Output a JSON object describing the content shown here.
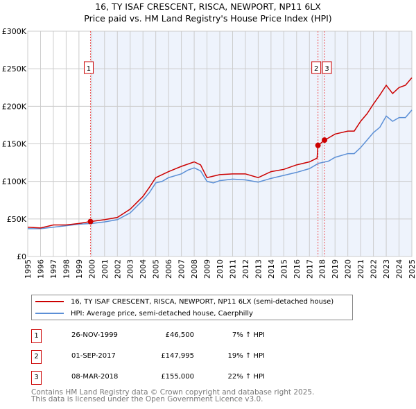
{
  "chart_data": {
    "type": "line",
    "title": "16, TY ISAF CRESCENT, RISCA, NEWPORT, NP11 6LX",
    "subtitle": "Price paid vs. HM Land Registry's House Price Index (HPI)",
    "xlim": [
      1995,
      2025
    ],
    "ylim": [
      0,
      300000
    ],
    "x_ticks": [
      "1995",
      "1996",
      "1997",
      "1998",
      "1999",
      "2000",
      "2001",
      "2002",
      "2003",
      "2004",
      "2005",
      "2006",
      "2007",
      "2008",
      "2009",
      "2010",
      "2011",
      "2012",
      "2013",
      "2014",
      "2015",
      "2016",
      "2017",
      "2018",
      "2019",
      "2020",
      "2021",
      "2022",
      "2023",
      "2024",
      "2025"
    ],
    "y_ticks": [
      {
        "v": 0,
        "label": "£0"
      },
      {
        "v": 50000,
        "label": "£50K"
      },
      {
        "v": 100000,
        "label": "£100K"
      },
      {
        "v": 150000,
        "label": "£150K"
      },
      {
        "v": 200000,
        "label": "£200K"
      },
      {
        "v": 250000,
        "label": "£250K"
      },
      {
        "v": 300000,
        "label": "£300K"
      }
    ],
    "grid": true,
    "series": [
      {
        "name": "16, TY ISAF CRESCENT, RISCA, NEWPORT, NP11 6LX (semi-detached house)",
        "color": "#cc0000",
        "x": [
          1995,
          1996,
          1997,
          1998,
          1999,
          1999.9,
          2001,
          2002,
          2003,
          2004,
          2004.5,
          2005,
          2006,
          2007,
          2008,
          2008.5,
          2009,
          2010,
          2011,
          2012,
          2013,
          2014,
          2015,
          2016,
          2017,
          2017.6,
          2017.67,
          2018.2,
          2019,
          2020,
          2020.5,
          2021,
          2021.5,
          2022,
          2022.5,
          2023,
          2023.5,
          2024,
          2024.5,
          2025
        ],
        "y": [
          39000,
          38000,
          42000,
          42000,
          44000,
          46500,
          49000,
          52000,
          63000,
          80000,
          92000,
          105000,
          113000,
          120000,
          126000,
          122000,
          105000,
          109000,
          110000,
          110000,
          105000,
          113000,
          116000,
          122000,
          126000,
          131000,
          148000,
          155000,
          163000,
          167000,
          167000,
          180000,
          190000,
          203000,
          215000,
          228000,
          217000,
          225000,
          228000,
          238000
        ]
      },
      {
        "name": "HPI: Average price, semi-detached house, Caerphilly",
        "color": "#5b8fd6",
        "x": [
          1995,
          1996,
          1997,
          1998,
          1999,
          2000,
          2001,
          2002,
          2003,
          2004,
          2004.5,
          2005,
          2005.5,
          2006,
          2007,
          2007.5,
          2008,
          2008.5,
          2009,
          2009.5,
          2010,
          2011,
          2012,
          2013,
          2014,
          2015,
          2016,
          2017,
          2017.7,
          2018.5,
          2019,
          2020,
          2020.5,
          2021,
          2021.5,
          2022,
          2022.5,
          2023,
          2023.5,
          2024,
          2024.5,
          2025
        ],
        "y": [
          37000,
          37000,
          39000,
          41000,
          43000,
          44000,
          46000,
          49000,
          58000,
          75000,
          85000,
          98000,
          100000,
          105000,
          110000,
          115000,
          118000,
          114000,
          100000,
          98000,
          101000,
          103000,
          102000,
          99000,
          104000,
          108000,
          112000,
          117000,
          124000,
          127000,
          132000,
          137000,
          137000,
          145000,
          155000,
          165000,
          172000,
          187000,
          180000,
          185000,
          185000,
          195000
        ]
      }
    ],
    "sales": [
      {
        "id": "1",
        "x": 1999.9,
        "y": 46500,
        "date": "26-NOV-1999",
        "price": "£46,500",
        "hpi": "7% ↑ HPI"
      },
      {
        "id": "2",
        "x": 2017.67,
        "y": 147995,
        "date": "01-SEP-2017",
        "price": "£147,995",
        "hpi": "19% ↑ HPI"
      },
      {
        "id": "3",
        "x": 2018.18,
        "y": 155000,
        "date": "08-MAR-2018",
        "price": "£155,000",
        "hpi": "22% ↑ HPI"
      }
    ],
    "shade_from": 1999.9
  },
  "footer": [
    "Contains HM Land Registry data © Crown copyright and database right 2025.",
    "This data is licensed under the Open Government Licence v3.0."
  ]
}
